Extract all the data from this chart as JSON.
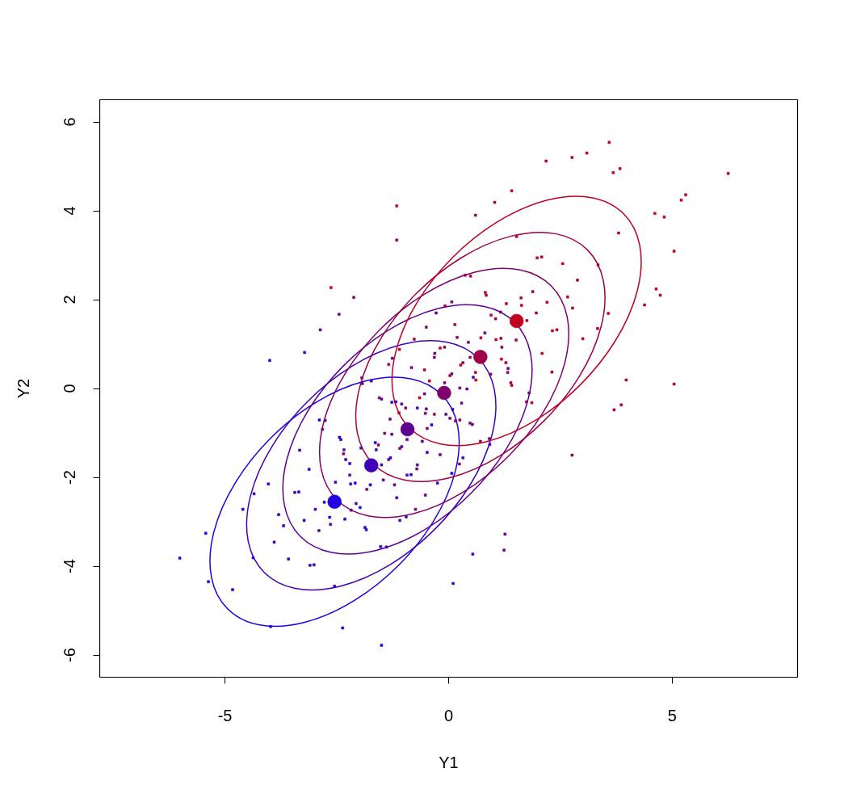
{
  "chart_data": {
    "type": "scatter",
    "xlabel": "Y1",
    "ylabel": "Y2",
    "xlim": [
      -7.8,
      7.8
    ],
    "ylim": [
      -6.5,
      6.5
    ],
    "xticks": [
      -5,
      0,
      5
    ],
    "yticks": [
      -6,
      -4,
      -2,
      0,
      2,
      4,
      6
    ],
    "grid": false,
    "series": [
      {
        "marker": "square",
        "color": "#2000e0",
        "x": [
          -2.32,
          -3.8,
          -1.64,
          -3.01,
          -0.84,
          -3.35,
          -2.44,
          -4.37,
          -1.87,
          -2.78,
          -1.3,
          -3.58,
          -2.09,
          -3.12,
          -0.38,
          -4.03,
          -1.52,
          -2.66,
          -2.21,
          -4.83,
          -1.18,
          -3.23,
          -2.55,
          -1.75,
          -3.69,
          0.07,
          -2.89,
          -1.98,
          -4.6,
          -0.95,
          -6.01,
          -5.43,
          -5.37,
          -3.98,
          -2.37,
          -1.5
        ],
        "values": [
          -2.94,
          -2.84,
          -1.22,
          -3.97,
          -1.94,
          -2.33,
          -1.1,
          -3.81,
          -3.13,
          -2.56,
          -1.56,
          -3.84,
          -2.13,
          -1.82,
          -0.82,
          -2.15,
          -3.56,
          -2.9,
          -1.69,
          -4.53,
          -0.3,
          -2.97,
          -4.45,
          -2.17,
          -3.09,
          -1.91,
          -0.71,
          -2.68,
          -2.72,
          -2.89,
          -3.82,
          -3.26,
          -4.35,
          -5.36,
          -5.39,
          -5.78
        ]
      },
      {
        "marker": "square",
        "color": "#4000ba",
        "x": [
          -1.96,
          -0.48,
          -2.64,
          -1.27,
          -3.44,
          -0.93,
          -1.84,
          0.09,
          -2.41,
          -1.5,
          -2.98,
          -0.7,
          -2.19,
          -1.16,
          -3.9,
          -0.25,
          -2.76,
          -1.62,
          -2.07,
          0.55,
          -3.1,
          -1.05,
          -1.73,
          -2.53,
          -0.59,
          -4.35,
          -1.39,
          -2.3,
          0.32,
          -3.33,
          0.1,
          0.54,
          -4.0,
          -3.22
        ],
        "values": [
          -1.34,
          -1.44,
          -3.06,
          -0.31,
          -2.34,
          -1.95,
          -3.18,
          -0.47,
          -1.15,
          -1.72,
          -2.72,
          -0.44,
          -2.15,
          -2.46,
          -3.46,
          -2.13,
          -0.72,
          -1.38,
          -2.59,
          0.25,
          -3.98,
          -1.31,
          0.17,
          -2.11,
          -1.19,
          -2.37,
          -3.57,
          -1.6,
          -1.56,
          -1.39,
          -4.39,
          -3.73,
          0.63,
          0.81
        ]
      },
      {
        "marker": "square",
        "color": "#600093",
        "x": [
          -1.31,
          -1.21,
          0.41,
          -2.34,
          -0.31,
          -0.7,
          0.53,
          -2.18,
          -1.5,
          -0.93,
          0.07,
          -2.21,
          -0.5,
          -0.19,
          0.81,
          -0.52,
          -1.93,
          -1.27,
          -0.06,
          -2.9,
          1.33,
          -1.34,
          -2.82,
          -0.54,
          -1.46,
          -0.28,
          0.92,
          -1.05,
          -1.09,
          -1.26,
          1.24,
          1.26,
          -2.87,
          -2.45
        ],
        "values": [
          -0.69,
          -2.17,
          -0.01,
          -1.38,
          0.79,
          -1.72,
          -0.81,
          -2.74,
          -0.24,
          -1.15,
          0.33,
          -1.95,
          -0.46,
          -1.49,
          1.25,
          -2.4,
          0.11,
          -1.03,
          -0.58,
          -3.2,
          0.45,
          -1.6,
          -0.92,
          -0.12,
          -2.06,
          1.7,
          -1.26,
          -0.35,
          -2.97,
          0.68,
          -3.64,
          -3.28,
          1.32,
          1.67
        ]
      },
      {
        "marker": "square",
        "color": "#80006d",
        "x": [
          0.29,
          0.19,
          -1.43,
          1.32,
          -0.71,
          -0.32,
          -1.55,
          1.16,
          0.48,
          -0.09,
          -1.09,
          1.19,
          -0.52,
          -0.83,
          -1.83,
          -0.5,
          0.91,
          0.25,
          -0.96,
          1.88,
          -2.35,
          0.32,
          1.8,
          -0.48,
          0.44,
          -0.74,
          -1.94,
          0.03,
          0.07,
          0.24,
          2.76,
          -1.16,
          -2.12
        ],
        "values": [
          -0.33,
          1.15,
          -1.01,
          0.36,
          -1.81,
          0.7,
          -0.21,
          1.72,
          -0.78,
          0.13,
          -1.35,
          0.93,
          -0.56,
          0.47,
          -2.27,
          1.38,
          -1.13,
          0.01,
          -0.44,
          2.18,
          -1.47,
          0.58,
          -0.1,
          -0.9,
          1.04,
          -2.72,
          0.24,
          -0.67,
          1.95,
          -1.7,
          -1.5,
          3.34,
          2.05
        ]
      },
      {
        "marker": "square",
        "color": "#a00046",
        "x": [
          0.94,
          -0.54,
          1.62,
          0.25,
          2.42,
          -0.09,
          0.82,
          -1.11,
          1.39,
          0.48,
          1.96,
          -0.32,
          1.17,
          0.14,
          2.88,
          -0.77,
          1.74,
          0.6,
          1.05,
          -1.57,
          2.08,
          0.03,
          0.71,
          1.51,
          -0.43,
          3.33,
          0.37,
          1.28,
          -1.34,
          2.31,
          3.7,
          3.86,
          3.97,
          0.6,
          1.03,
          2.18
        ],
        "values": [
          0.32,
          0.42,
          2.04,
          -0.71,
          1.32,
          0.93,
          2.16,
          -0.55,
          0.13,
          0.7,
          1.7,
          -0.58,
          1.13,
          1.44,
          2.44,
          1.11,
          -0.3,
          0.36,
          1.57,
          -1.27,
          2.96,
          0.29,
          -1.19,
          1.09,
          0.17,
          1.35,
          2.55,
          0.58,
          0.54,
          0.37,
          -0.48,
          -0.37,
          0.19,
          3.9,
          4.19,
          5.12
        ]
      },
      {
        "marker": "square",
        "color": "#c00020",
        "x": [
          1.29,
          2.77,
          0.61,
          1.98,
          -0.19,
          2.32,
          1.41,
          3.34,
          0.84,
          1.75,
          0.27,
          2.55,
          1.06,
          2.09,
          -0.65,
          3.0,
          0.49,
          1.63,
          1.18,
          3.8,
          0.15,
          2.2,
          1.52,
          0.72,
          2.66,
          -1.1,
          1.86,
          0.95,
          3.57,
          -0.08,
          3.59,
          6.25,
          5.3,
          5.2,
          3.09,
          2.76,
          3.83,
          3.68,
          1.41,
          4.73,
          4.64,
          4.38,
          5.04,
          5.04,
          4.82,
          4.61,
          -1.16,
          -2.63
        ],
        "values": [
          1.91,
          1.81,
          0.19,
          2.94,
          0.91,
          1.3,
          0.07,
          2.78,
          2.1,
          1.53,
          0.53,
          2.81,
          1.1,
          0.79,
          -0.21,
          1.12,
          2.53,
          1.87,
          0.66,
          3.5,
          -0.73,
          1.94,
          3.42,
          1.14,
          2.06,
          0.88,
          -0.32,
          1.65,
          1.69,
          1.86,
          5.54,
          4.84,
          4.36,
          4.24,
          5.3,
          5.2,
          4.95,
          4.86,
          4.45,
          2.1,
          2.24,
          1.88,
          0.1,
          3.09,
          3.86,
          3.94,
          4.11,
          2.27
        ]
      },
      {
        "marker": "circle",
        "colors": [
          "#2000e0",
          "#4000ba",
          "#600093",
          "#80006d",
          "#a00046",
          "#c00020"
        ],
        "x": [
          -2.55,
          -1.73,
          -0.92,
          -0.1,
          0.71,
          1.52
        ],
        "values": [
          -2.55,
          -1.73,
          -0.92,
          -0.1,
          0.71,
          1.52
        ]
      }
    ]
  }
}
